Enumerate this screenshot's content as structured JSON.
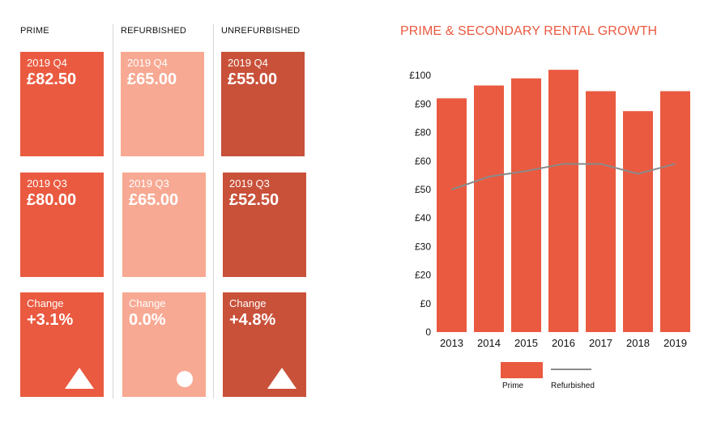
{
  "columns": [
    {
      "header": "PRIME",
      "cards": [
        {
          "label": "2019 Q4",
          "value": "£82.50"
        },
        {
          "label": "2019 Q3",
          "value": "£80.00"
        },
        {
          "label": "Change",
          "value": "+3.1%",
          "marker": "up-triangle-icon"
        }
      ]
    },
    {
      "header": "REFURBISHED",
      "cards": [
        {
          "label": "2019 Q4",
          "value": "£65.00"
        },
        {
          "label": "2019 Q3",
          "value": "£65.00"
        },
        {
          "label": "Change",
          "value": "0.0%",
          "marker": "circle-icon"
        }
      ]
    },
    {
      "header": "UNREFURBISHED",
      "cards": [
        {
          "label": "2019 Q4",
          "value": "£55.00"
        },
        {
          "label": "2019 Q3",
          "value": "£52.50"
        },
        {
          "label": "Change",
          "value": "+4.8%",
          "marker": "up-triangle-icon"
        }
      ]
    }
  ],
  "colors": {
    "prime": "#ea5a40",
    "refurbished": "#f8a993",
    "unrefurbished": "#c9513a",
    "line": "#8a8a8a"
  },
  "chart_data": {
    "type": "bar",
    "title": "PRIME & SECONDARY RENTAL GROWTH",
    "categories": [
      "2013",
      "2014",
      "2015",
      "2016",
      "2017",
      "2018",
      "2019"
    ],
    "y_tick_labels": [
      "0",
      "£0",
      "£20",
      "£30",
      "£40",
      "£50",
      "£60",
      "£80",
      "£90",
      "£100"
    ],
    "series": [
      {
        "name": "Prime",
        "type": "bar",
        "values": [
          82,
          86.5,
          89,
          92,
          84.5,
          77.5,
          84.5
        ]
      },
      {
        "name": "Refurbished",
        "type": "line",
        "values": [
          50,
          54.5,
          56.5,
          59,
          59,
          55.5,
          59
        ]
      }
    ],
    "legend": "bottom"
  }
}
